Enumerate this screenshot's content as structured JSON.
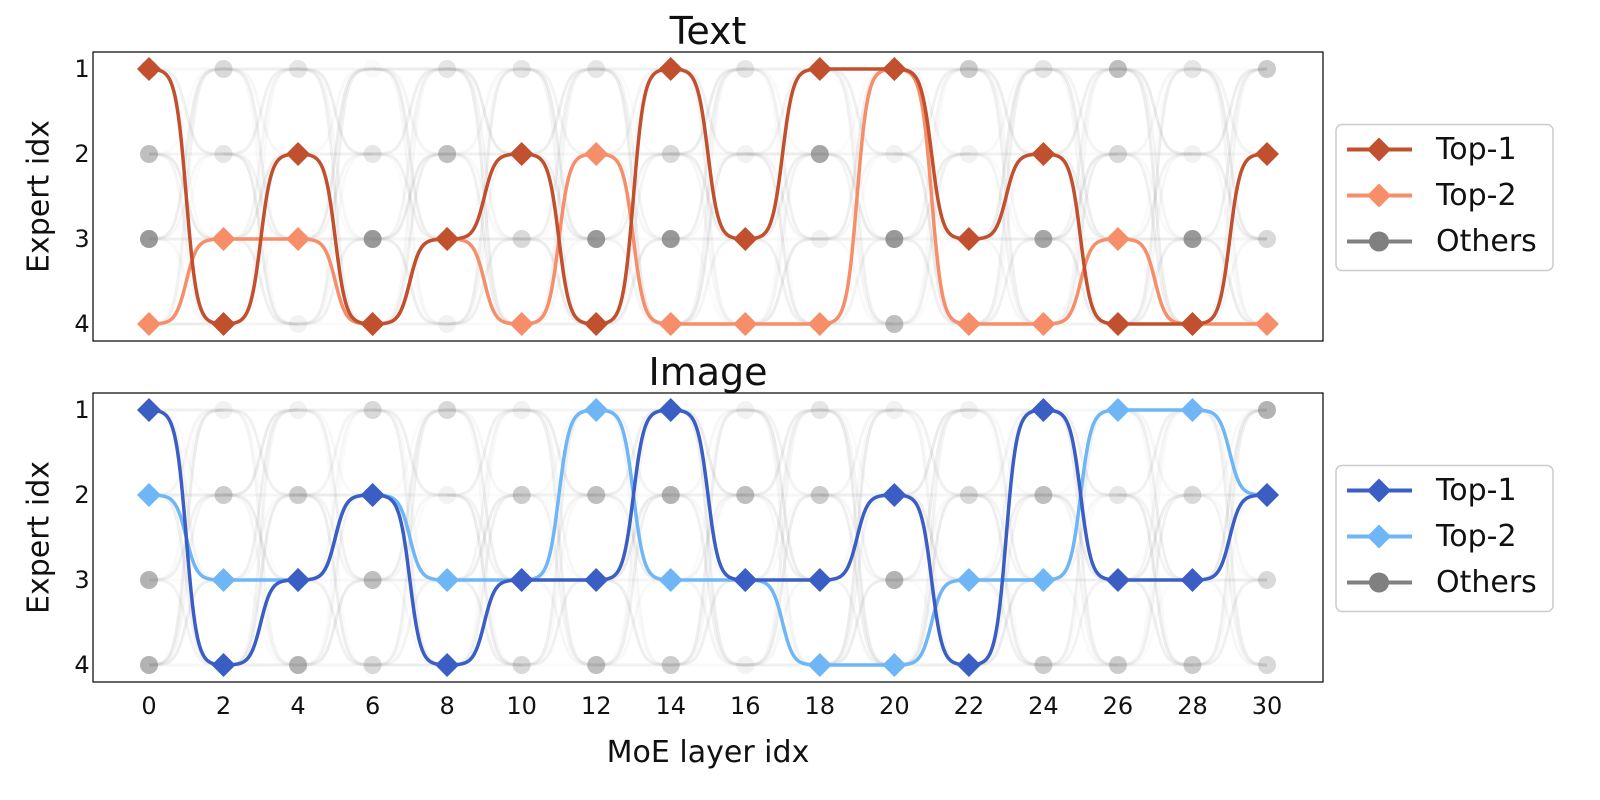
{
  "chart_data": [
    {
      "type": "line",
      "title": "Text",
      "ylabel": "Expert idx",
      "xlabel": "",
      "xlim": [
        0,
        30
      ],
      "ylim": [
        1,
        4
      ],
      "y_inverted": true,
      "yticks": [
        1,
        2,
        3,
        4
      ],
      "xticks": [],
      "grid": false,
      "legend_position": "right",
      "legend": [
        "Top-1",
        "Top-2",
        "Others"
      ],
      "x": [
        0,
        2,
        4,
        6,
        8,
        10,
        12,
        14,
        16,
        18,
        20,
        22,
        24,
        26,
        28,
        30
      ],
      "series": [
        {
          "name": "Top-1",
          "color": "#c0502e",
          "values": [
            1,
            4,
            2,
            4,
            3,
            2,
            4,
            1,
            3,
            1,
            1,
            3,
            2,
            4,
            4,
            2
          ]
        },
        {
          "name": "Top-2",
          "color": "#f68e6a",
          "values": [
            4,
            3,
            3,
            4,
            3,
            4,
            2,
            4,
            4,
            4,
            1,
            4,
            4,
            3,
            4,
            4
          ]
        }
      ],
      "others_color": "#808080",
      "others_opacity": [
        [
          0.4,
          0.3,
          0.2,
          0.05,
          0.2,
          0.2,
          0.2,
          0,
          0.2,
          0,
          0,
          0.4,
          0.2,
          0.5,
          0.2,
          0.4
        ],
        [
          0.5,
          0.2,
          0,
          0.2,
          0.5,
          0,
          0,
          0.3,
          0.1,
          0.7,
          0.1,
          0.1,
          0,
          0.3,
          0.1,
          0
        ],
        [
          0.8,
          0,
          0,
          0.8,
          0,
          0.3,
          0.8,
          0.8,
          0,
          0.1,
          0.8,
          0,
          0.7,
          0,
          0.8,
          0.3
        ],
        [
          0,
          0,
          0.1,
          0,
          0.1,
          0,
          0,
          0,
          0,
          0,
          0.5,
          0,
          0,
          0,
          0,
          0
        ]
      ]
    },
    {
      "type": "line",
      "title": "Image",
      "ylabel": "Expert idx",
      "xlabel": "MoE layer idx",
      "xlim": [
        0,
        30
      ],
      "ylim": [
        1,
        4
      ],
      "y_inverted": true,
      "yticks": [
        1,
        2,
        3,
        4
      ],
      "xticks": [
        0,
        2,
        4,
        6,
        8,
        10,
        12,
        14,
        16,
        18,
        20,
        22,
        24,
        26,
        28,
        30
      ],
      "grid": false,
      "legend_position": "right",
      "legend": [
        "Top-1",
        "Top-2",
        "Others"
      ],
      "x": [
        0,
        2,
        4,
        6,
        8,
        10,
        12,
        14,
        16,
        18,
        20,
        22,
        24,
        26,
        28,
        30
      ],
      "series": [
        {
          "name": "Top-1",
          "color": "#3a5ec4",
          "values": [
            1,
            4,
            3,
            2,
            4,
            3,
            3,
            1,
            3,
            3,
            2,
            4,
            1,
            3,
            3,
            2
          ]
        },
        {
          "name": "Top-2",
          "color": "#6fb6f7",
          "values": [
            2,
            3,
            3,
            2,
            3,
            3,
            1,
            3,
            3,
            4,
            4,
            3,
            3,
            1,
            1,
            2
          ]
        }
      ],
      "others_color": "#808080",
      "others_opacity": [
        [
          0,
          0.1,
          0.1,
          0.3,
          0.3,
          0.1,
          0,
          0,
          0.1,
          0.2,
          0.1,
          0.1,
          0,
          0,
          0,
          0.6
        ],
        [
          0,
          0.4,
          0.4,
          0,
          0.1,
          0.4,
          0.5,
          0.6,
          0.5,
          0.4,
          0.1,
          0.3,
          0.5,
          0.2,
          0.3,
          0
        ],
        [
          0.6,
          0,
          0,
          0.5,
          0,
          0,
          0,
          0,
          0,
          0,
          0.6,
          0,
          0,
          0,
          0,
          0.3
        ],
        [
          0.6,
          0,
          0.6,
          0.3,
          0,
          0.3,
          0.5,
          0.4,
          0.1,
          0,
          0,
          0,
          0.4,
          0.4,
          0.4,
          0.3
        ]
      ]
    }
  ]
}
